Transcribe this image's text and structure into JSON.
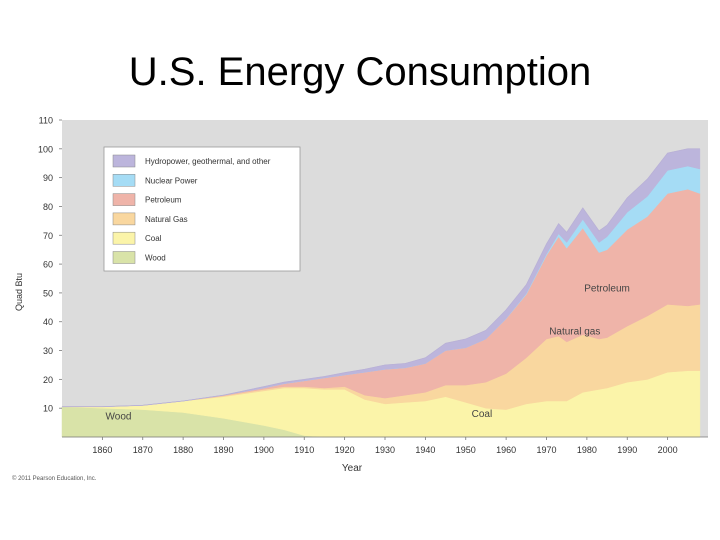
{
  "slide": {
    "title": "U.S. Energy Consumption",
    "copyright": "© 2011 Pearson Education, Inc."
  },
  "colors": {
    "plot_background": "#dcdcdc",
    "wood": "#d9e3a8",
    "coal": "#fbf4a9",
    "natural_gas": "#f9d79f",
    "petroleum": "#efb4a9",
    "nuclear": "#a5dcf5",
    "hydro": "#bcb5dc"
  },
  "chart_data": {
    "type": "area",
    "stacked": true,
    "xlabel": "Year",
    "ylabel": "Quad Btu",
    "xlim": [
      1850,
      2010
    ],
    "ylim": [
      0,
      110
    ],
    "xticks": [
      1860,
      1870,
      1880,
      1890,
      1900,
      1910,
      1920,
      1930,
      1940,
      1950,
      1960,
      1970,
      1980,
      1990,
      2000
    ],
    "yticks": [
      10,
      20,
      30,
      40,
      50,
      60,
      70,
      80,
      90,
      100,
      110
    ],
    "grid": false,
    "legend_position": "top-left",
    "x": [
      1850,
      1860,
      1870,
      1880,
      1890,
      1900,
      1905,
      1910,
      1915,
      1920,
      1925,
      1930,
      1935,
      1940,
      1945,
      1950,
      1955,
      1960,
      1965,
      1970,
      1973,
      1975,
      1979,
      1983,
      1985,
      1990,
      1995,
      2000,
      2005,
      2008
    ],
    "series": [
      {
        "name": "Wood",
        "key": "wood",
        "legend_label": "Wood",
        "values": [
          10.5,
          10,
          9.5,
          8.5,
          6.5,
          4,
          2.5,
          0.5,
          0,
          0,
          0,
          0,
          0,
          0,
          0,
          0,
          0,
          0,
          0,
          0,
          0,
          0,
          0,
          0,
          0,
          0,
          0,
          0,
          0,
          0
        ]
      },
      {
        "name": "Coal",
        "key": "coal",
        "legend_label": "Coal",
        "values": [
          0,
          0.5,
          1.5,
          4,
          7.5,
          12,
          14.5,
          16.5,
          16.5,
          16.5,
          13,
          11.5,
          12,
          12.5,
          14,
          12,
          10,
          9.5,
          11.5,
          12.5,
          12.5,
          12.5,
          15.5,
          16.5,
          17,
          19,
          20,
          22.5,
          23,
          23
        ]
      },
      {
        "name": "Natural gas",
        "key": "natural_gas",
        "legend_label": "Natural Gas",
        "values": [
          0,
          0,
          0,
          0,
          0.3,
          0.5,
          0.5,
          0.5,
          0.5,
          1,
          1.5,
          2,
          2.5,
          3,
          4,
          6,
          9,
          12.5,
          16,
          21.5,
          22.5,
          20.5,
          20,
          17.5,
          17.5,
          19.5,
          22,
          23.5,
          22.5,
          23
        ]
      },
      {
        "name": "Petroleum",
        "key": "petroleum",
        "legend_label": "Petroleum",
        "values": [
          0,
          0,
          0,
          0,
          0.2,
          0.5,
          1,
          2,
          3.5,
          4,
          8,
          10,
          9.5,
          10,
          12,
          13,
          15,
          19,
          22,
          29,
          34.5,
          32.5,
          37,
          30,
          30.5,
          33.5,
          34.5,
          38.5,
          40.5,
          38.5
        ]
      },
      {
        "name": "Nuclear Power",
        "key": "nuclear",
        "legend_label": "Nuclear Power",
        "values": [
          0,
          0,
          0,
          0,
          0,
          0,
          0,
          0,
          0,
          0,
          0,
          0,
          0,
          0,
          0,
          0,
          0,
          0.1,
          0.3,
          0.5,
          1,
          2,
          3,
          3.5,
          4.5,
          6,
          7,
          8,
          8,
          8.5
        ]
      },
      {
        "name": "Hydropower, geothermal, and other",
        "key": "hydro",
        "legend_label": "Hydropower, geothermal, and other",
        "values": [
          0,
          0,
          0,
          0,
          0,
          0.5,
          0.5,
          0.5,
          0.5,
          0.8,
          1,
          1.5,
          1.5,
          2,
          2.5,
          3,
          3,
          3,
          3,
          3.5,
          3.5,
          3.5,
          4,
          4,
          4,
          5,
          6,
          6,
          6,
          7
        ]
      }
    ],
    "annotations": [
      {
        "text": "Petroleum",
        "x": 1985,
        "y": 50.5
      },
      {
        "text": "Natural gas",
        "x": 1977,
        "y": 35.5
      },
      {
        "text": "Coal",
        "x": 1954,
        "y": 7
      },
      {
        "text": "Wood",
        "x": 1864,
        "y": 6
      }
    ]
  }
}
